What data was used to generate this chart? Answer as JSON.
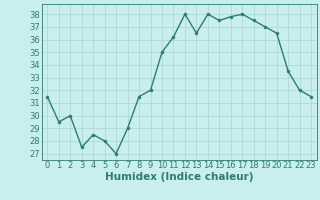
{
  "x": [
    0,
    1,
    2,
    3,
    4,
    5,
    6,
    7,
    8,
    9,
    10,
    11,
    12,
    13,
    14,
    15,
    16,
    17,
    18,
    19,
    20,
    21,
    22,
    23
  ],
  "y": [
    31.5,
    29.5,
    30.0,
    27.5,
    28.5,
    28.0,
    27.0,
    29.0,
    31.5,
    32.0,
    35.0,
    36.2,
    38.0,
    36.5,
    38.0,
    37.5,
    37.8,
    38.0,
    37.5,
    37.0,
    36.5,
    33.5,
    32.0,
    31.5
  ],
  "line_color": "#2e7d6e",
  "marker_color": "#2e7d6e",
  "bg_color": "#c8eeee",
  "grid_color": "#b0d8d8",
  "xlabel": "Humidex (Indice chaleur)",
  "ylabel_ticks": [
    27,
    28,
    29,
    30,
    31,
    32,
    33,
    34,
    35,
    36,
    37,
    38
  ],
  "ylim": [
    26.5,
    38.8
  ],
  "xlim": [
    -0.5,
    23.5
  ],
  "tick_label_color": "#2e7d6e",
  "axis_color": "#2e7d6e",
  "xlabel_color": "#2e7d6e",
  "xlabel_fontsize": 7.5,
  "tick_fontsize": 6.0,
  "marker_size": 2.0,
  "line_width": 1.0
}
